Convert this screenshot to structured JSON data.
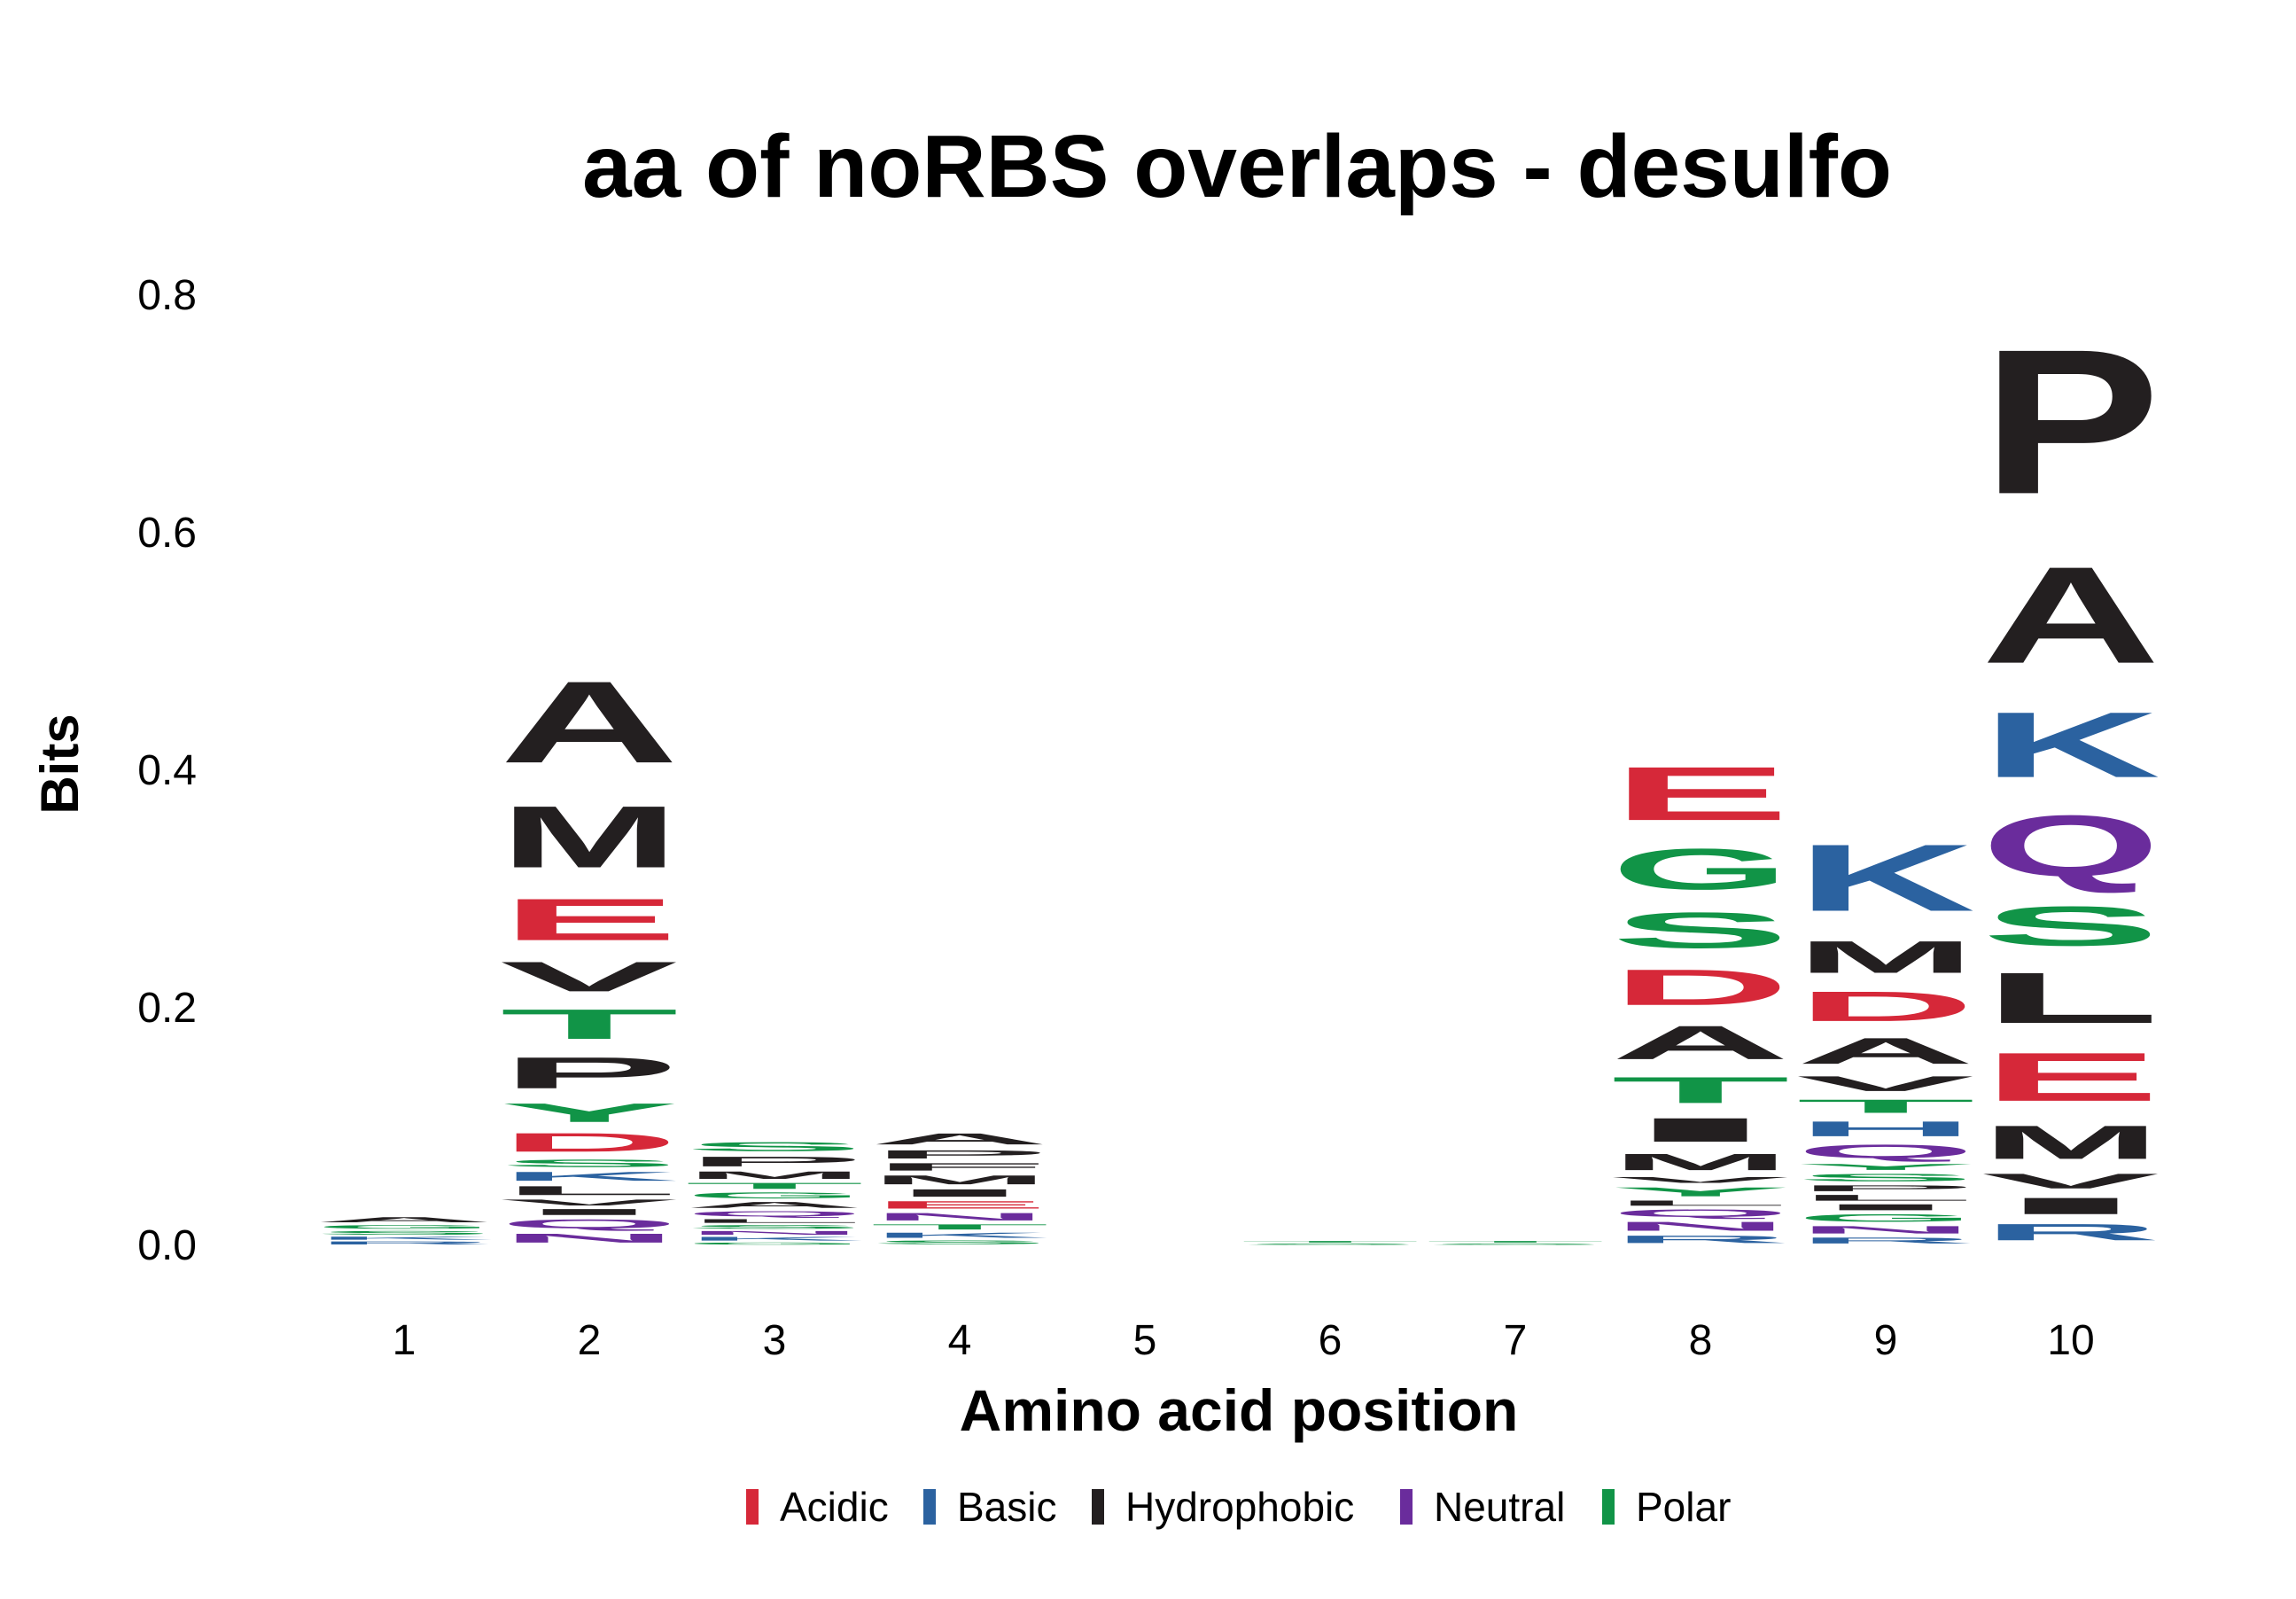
{
  "chart_data": {
    "type": "sequence-logo",
    "title": "aa of noRBS overlaps - desulfo",
    "xlabel": "Amino acid position",
    "ylabel": "Bits",
    "ylim": [
      0,
      0.8
    ],
    "yticks": [
      "0.0",
      "0.2",
      "0.4",
      "0.6",
      "0.8"
    ],
    "positions": [
      "1",
      "2",
      "3",
      "4",
      "5",
      "6",
      "7",
      "8",
      "9",
      "10"
    ],
    "colors": {
      "Acidic": "#d62839",
      "Basic": "#2b62a0",
      "Hydrophobic": "#231f20",
      "Neutral": "#6a2c9c",
      "Polar": "#119447"
    },
    "legend": [
      "Acidic",
      "Basic",
      "Hydrophobic",
      "Neutral",
      "Polar"
    ],
    "legend_position": "bottom",
    "grid": false,
    "stacks": [
      {
        "position": "1",
        "letters": [
          {
            "aa": "R",
            "class": "Basic",
            "bits": 0.004
          },
          {
            "aa": "K",
            "class": "Basic",
            "bits": 0.004
          },
          {
            "aa": "S",
            "class": "Polar",
            "bits": 0.005
          },
          {
            "aa": "G",
            "class": "Polar",
            "bits": 0.005
          },
          {
            "aa": "A",
            "class": "Hydrophobic",
            "bits": 0.007
          }
        ]
      },
      {
        "position": "2",
        "letters": [
          {
            "aa": "N",
            "class": "Neutral",
            "bits": 0.012
          },
          {
            "aa": "Q",
            "class": "Neutral",
            "bits": 0.012
          },
          {
            "aa": "I",
            "class": "Hydrophobic",
            "bits": 0.008
          },
          {
            "aa": "V",
            "class": "Hydrophobic",
            "bits": 0.008
          },
          {
            "aa": "L",
            "class": "Hydrophobic",
            "bits": 0.012
          },
          {
            "aa": "K",
            "class": "Basic",
            "bits": 0.012
          },
          {
            "aa": "S",
            "class": "Polar",
            "bits": 0.01
          },
          {
            "aa": "D",
            "class": "Acidic",
            "bits": 0.025
          },
          {
            "aa": "Y",
            "class": "Polar",
            "bits": 0.025
          },
          {
            "aa": "P",
            "class": "Hydrophobic",
            "bits": 0.042
          },
          {
            "aa": "T",
            "class": "Polar",
            "bits": 0.04
          },
          {
            "aa": "V",
            "class": "Hydrophobic",
            "bits": 0.04
          },
          {
            "aa": "E",
            "class": "Acidic",
            "bits": 0.056
          },
          {
            "aa": "M",
            "class": "Hydrophobic",
            "bits": 0.083
          },
          {
            "aa": "A",
            "class": "Hydrophobic",
            "bits": 0.11
          }
        ]
      },
      {
        "position": "3",
        "letters": [
          {
            "aa": "G",
            "class": "Polar",
            "bits": 0.003
          },
          {
            "aa": "K",
            "class": "Basic",
            "bits": 0.005
          },
          {
            "aa": "N",
            "class": "Neutral",
            "bits": 0.005
          },
          {
            "aa": "S",
            "class": "Polar",
            "bits": 0.005
          },
          {
            "aa": "L",
            "class": "Hydrophobic",
            "bits": 0.005
          },
          {
            "aa": "Q",
            "class": "Neutral",
            "bits": 0.007
          },
          {
            "aa": "A",
            "class": "Hydrophobic",
            "bits": 0.008
          },
          {
            "aa": "G",
            "class": "Polar",
            "bits": 0.008
          },
          {
            "aa": "T",
            "class": "Polar",
            "bits": 0.008
          },
          {
            "aa": "M",
            "class": "Hydrophobic",
            "bits": 0.01
          },
          {
            "aa": "P",
            "class": "Hydrophobic",
            "bits": 0.013
          },
          {
            "aa": "S",
            "class": "Polar",
            "bits": 0.012
          }
        ]
      },
      {
        "position": "4",
        "letters": [
          {
            "aa": "S",
            "class": "Polar",
            "bits": 0.005
          },
          {
            "aa": "K",
            "class": "Basic",
            "bits": 0.007
          },
          {
            "aa": "T",
            "class": "Polar",
            "bits": 0.007
          },
          {
            "aa": "N",
            "class": "Neutral",
            "bits": 0.01
          },
          {
            "aa": "E",
            "class": "Acidic",
            "bits": 0.01
          },
          {
            "aa": "I",
            "class": "Hydrophobic",
            "bits": 0.01
          },
          {
            "aa": "M",
            "class": "Hydrophobic",
            "bits": 0.012
          },
          {
            "aa": "F",
            "class": "Hydrophobic",
            "bits": 0.01
          },
          {
            "aa": "P",
            "class": "Hydrophobic",
            "bits": 0.011
          },
          {
            "aa": "A",
            "class": "Hydrophobic",
            "bits": 0.015
          }
        ]
      },
      {
        "position": "5",
        "letters": []
      },
      {
        "position": "6",
        "letters": [
          {
            "aa": "S",
            "class": "Polar",
            "bits": 0.002
          },
          {
            "aa": "T",
            "class": "Polar",
            "bits": 0.002
          }
        ]
      },
      {
        "position": "7",
        "letters": [
          {
            "aa": "S",
            "class": "Polar",
            "bits": 0.002
          },
          {
            "aa": "T",
            "class": "Polar",
            "bits": 0.002
          }
        ]
      },
      {
        "position": "8",
        "letters": [
          {
            "aa": "R",
            "class": "Basic",
            "bits": 0.01
          },
          {
            "aa": "N",
            "class": "Neutral",
            "bits": 0.012
          },
          {
            "aa": "Q",
            "class": "Neutral",
            "bits": 0.01
          },
          {
            "aa": "L",
            "class": "Hydrophobic",
            "bits": 0.007
          },
          {
            "aa": "Y",
            "class": "Polar",
            "bits": 0.012
          },
          {
            "aa": "V",
            "class": "Hydrophobic",
            "bits": 0.008
          },
          {
            "aa": "M",
            "class": "Hydrophobic",
            "bits": 0.022
          },
          {
            "aa": "I",
            "class": "Hydrophobic",
            "bits": 0.032
          },
          {
            "aa": "T",
            "class": "Polar",
            "bits": 0.035
          },
          {
            "aa": "A",
            "class": "Hydrophobic",
            "bits": 0.045
          },
          {
            "aa": "D",
            "class": "Acidic",
            "bits": 0.048
          },
          {
            "aa": "S",
            "class": "Polar",
            "bits": 0.048
          },
          {
            "aa": "G",
            "class": "Polar",
            "bits": 0.055
          },
          {
            "aa": "E",
            "class": "Acidic",
            "bits": 0.072
          }
        ]
      },
      {
        "position": "9",
        "letters": [
          {
            "aa": "R",
            "class": "Basic",
            "bits": 0.008
          },
          {
            "aa": "N",
            "class": "Neutral",
            "bits": 0.01
          },
          {
            "aa": "G",
            "class": "Polar",
            "bits": 0.01
          },
          {
            "aa": "I",
            "class": "Hydrophobic",
            "bits": 0.008
          },
          {
            "aa": "L",
            "class": "Hydrophobic",
            "bits": 0.008
          },
          {
            "aa": "P",
            "class": "Hydrophobic",
            "bits": 0.008
          },
          {
            "aa": "S",
            "class": "Polar",
            "bits": 0.01
          },
          {
            "aa": "Y",
            "class": "Polar",
            "bits": 0.008
          },
          {
            "aa": "Q",
            "class": "Neutral",
            "bits": 0.018
          },
          {
            "aa": "H",
            "class": "Basic",
            "bits": 0.02
          },
          {
            "aa": "T",
            "class": "Polar",
            "bits": 0.018
          },
          {
            "aa": "V",
            "class": "Hydrophobic",
            "bits": 0.02
          },
          {
            "aa": "A",
            "class": "Hydrophobic",
            "bits": 0.035
          },
          {
            "aa": "D",
            "class": "Acidic",
            "bits": 0.04
          },
          {
            "aa": "M",
            "class": "Hydrophobic",
            "bits": 0.043
          },
          {
            "aa": "K",
            "class": "Basic",
            "bits": 0.09
          }
        ]
      },
      {
        "position": "10",
        "letters": [
          {
            "aa": "R",
            "class": "Basic",
            "bits": 0.022
          },
          {
            "aa": "I",
            "class": "Hydrophobic",
            "bits": 0.022
          },
          {
            "aa": "V",
            "class": "Hydrophobic",
            "bits": 0.02
          },
          {
            "aa": "M",
            "class": "Hydrophobic",
            "bits": 0.045
          },
          {
            "aa": "E",
            "class": "Acidic",
            "bits": 0.065
          },
          {
            "aa": "L",
            "class": "Hydrophobic",
            "bits": 0.068
          },
          {
            "aa": "S",
            "class": "Polar",
            "bits": 0.053
          },
          {
            "aa": "Q",
            "class": "Neutral",
            "bits": 0.082
          },
          {
            "aa": "K",
            "class": "Basic",
            "bits": 0.088
          },
          {
            "aa": "A",
            "class": "Hydrophobic",
            "bits": 0.13
          },
          {
            "aa": "P",
            "class": "Hydrophobic",
            "bits": 0.195
          }
        ]
      }
    ]
  }
}
